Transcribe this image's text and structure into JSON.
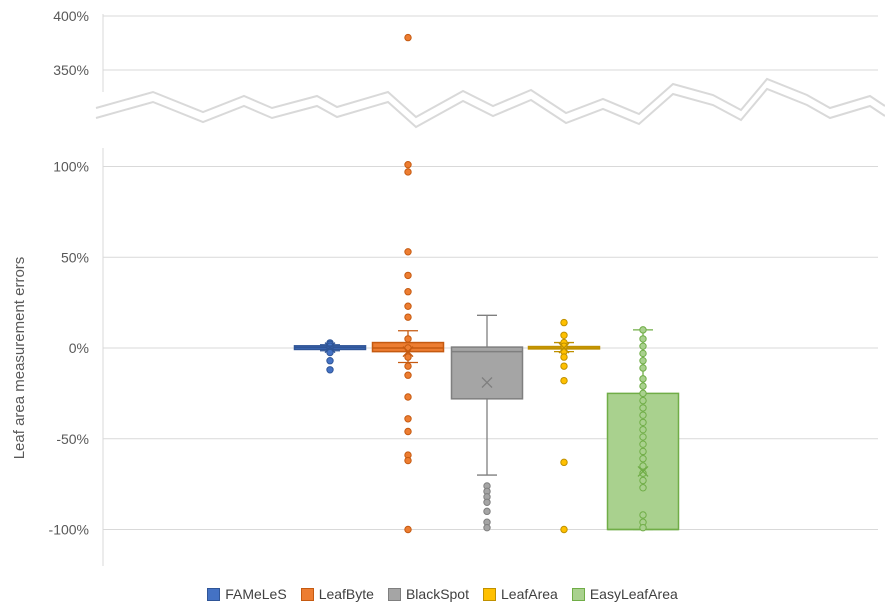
{
  "chart_data": {
    "type": "box",
    "ylabel": "Leaf area measurement errors",
    "y_ticks_lower": [
      "100%",
      "50%",
      "0%",
      "-50%",
      "-100%"
    ],
    "y_ticks_upper": [
      "400%",
      "350%"
    ],
    "ylim_lower": [
      -100,
      100
    ],
    "ylim_upper": [
      350,
      400
    ],
    "axis_break": true,
    "gridlines": true,
    "legend_position": "bottom",
    "series": [
      {
        "name": "FAMeLeS",
        "color": "#4472C4",
        "edge": "#2F5597",
        "q1": -0.8,
        "median": 0.3,
        "q3": 1.2,
        "whisker_low": -1.5,
        "whisker_high": 1.8,
        "mean": 0.2,
        "points": [
          2.8,
          2.0,
          1.0,
          -0.5,
          -1.5,
          -2.5,
          -7,
          -12
        ]
      },
      {
        "name": "LeafByte",
        "color": "#ED7D31",
        "edge": "#C55A11",
        "q1": -2,
        "median": 0,
        "q3": 3,
        "whisker_low": -8,
        "whisker_high": 9.5,
        "mean": -2,
        "points": [
          380,
          101,
          97,
          53,
          40,
          31,
          23,
          17,
          5,
          0,
          -5,
          -10,
          -15,
          -27,
          -39,
          -46,
          -59,
          -62,
          -100
        ]
      },
      {
        "name": "BlackSpot",
        "color": "#A5A5A5",
        "edge": "#7F7F7F",
        "q1": -28,
        "median": -2,
        "q3": 0.5,
        "whisker_low": -70,
        "whisker_high": 18,
        "mean": -19,
        "points": [
          -76,
          -79,
          -82,
          -85,
          -90,
          -96,
          -99
        ]
      },
      {
        "name": "LeafArea",
        "color": "#FFC000",
        "edge": "#BF9000",
        "q1": -0.5,
        "median": 0,
        "q3": 0.8,
        "whisker_low": -2,
        "whisker_high": 3,
        "mean": 0,
        "points": [
          14,
          7,
          3,
          1,
          -2,
          -5,
          -10,
          -18,
          -63,
          -100
        ]
      },
      {
        "name": "EasyLeafArea",
        "color": "#A9D18E",
        "edge": "#70AD47",
        "q1": -100,
        "median": -100,
        "q3": -25,
        "whisker_low": -100,
        "whisker_high": 10,
        "mean": -68,
        "points": [
          10,
          5,
          1,
          -3,
          -7,
          -11,
          -17,
          -21,
          -25,
          -29,
          -33,
          -37,
          -41,
          -45,
          -49,
          -53,
          -57,
          -61,
          -65,
          -69,
          -73,
          -77,
          -92,
          -96,
          -99
        ]
      }
    ]
  }
}
